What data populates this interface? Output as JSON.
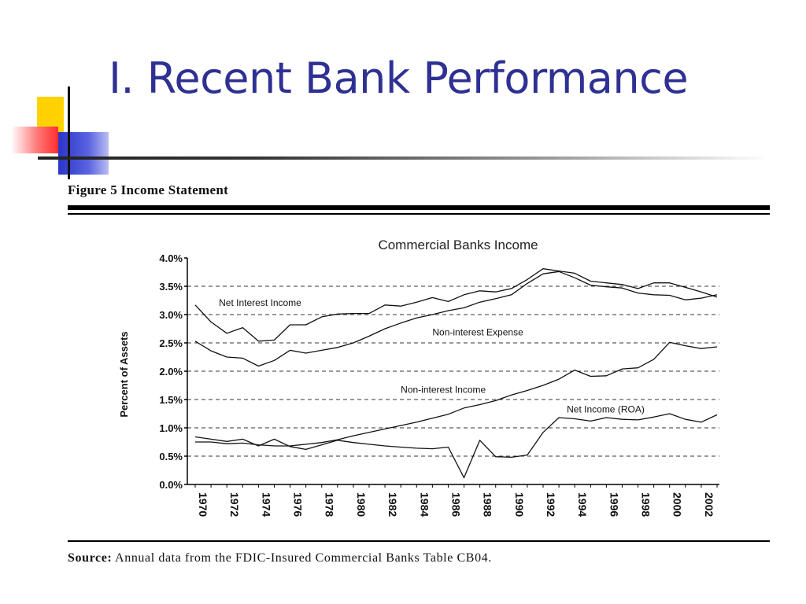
{
  "slide": {
    "title": "I. Recent Bank Performance"
  },
  "figure": {
    "caption": "Figure 5  Income Statement",
    "source_prefix": "Source:",
    "source_text": " Annual data from the FDIC-Insured Commercial Banks Table CB04."
  },
  "colors": {
    "title": "#2e3192",
    "line": "#111111",
    "deco_yellow": "#ffd200",
    "deco_red": "#ff2d2d",
    "deco_blue": "#2b35c8"
  },
  "chart_data": {
    "type": "line",
    "title": "Commercial Banks Income",
    "ylabel": "Percent of Assets",
    "xlabel": "",
    "ylim": [
      0.0,
      4.0
    ],
    "yticks": [
      "0.0%",
      "0.5%",
      "1.0%",
      "1.5%",
      "2.0%",
      "2.5%",
      "3.0%",
      "3.5%",
      "4.0%"
    ],
    "xlim": [
      1970,
      2003
    ],
    "xticks": [
      "1970",
      "1972",
      "1974",
      "1976",
      "1978",
      "1980",
      "1982",
      "1984",
      "1986",
      "1988",
      "1990",
      "1992",
      "1994",
      "1996",
      "1998",
      "2000",
      "2002"
    ],
    "grid": "horizontal dashed",
    "x": [
      1970,
      1971,
      1972,
      1973,
      1974,
      1975,
      1976,
      1977,
      1978,
      1979,
      1980,
      1981,
      1982,
      1983,
      1984,
      1985,
      1986,
      1987,
      1988,
      1989,
      1990,
      1991,
      1992,
      1993,
      1994,
      1995,
      1996,
      1997,
      1998,
      1999,
      2000,
      2001,
      2002,
      2003
    ],
    "series": [
      {
        "name": "Net Interest Income",
        "label_at": [
          1971.5,
          3.15
        ],
        "values": [
          3.17,
          2.87,
          2.67,
          2.77,
          2.53,
          2.55,
          2.82,
          2.82,
          2.96,
          3.01,
          3.02,
          3.02,
          3.17,
          3.15,
          3.22,
          3.3,
          3.23,
          3.35,
          3.42,
          3.4,
          3.46,
          3.62,
          3.81,
          3.77,
          3.73,
          3.59,
          3.56,
          3.53,
          3.46,
          3.56,
          3.56,
          3.48,
          3.4,
          3.31
        ]
      },
      {
        "name": "Non-interest Expense",
        "label_at": [
          1985.0,
          2.63
        ],
        "values": [
          2.53,
          2.36,
          2.25,
          2.23,
          2.09,
          2.19,
          2.37,
          2.32,
          2.37,
          2.42,
          2.5,
          2.62,
          2.75,
          2.85,
          2.94,
          3.0,
          3.07,
          3.12,
          3.22,
          3.28,
          3.35,
          3.55,
          3.72,
          3.76,
          3.65,
          3.52,
          3.49,
          3.47,
          3.38,
          3.35,
          3.34,
          3.26,
          3.29,
          3.35
        ]
      },
      {
        "name": "Non-interest Income",
        "label_at": [
          1983.0,
          1.62
        ],
        "values": [
          0.75,
          0.75,
          0.72,
          0.73,
          0.7,
          0.68,
          0.68,
          0.71,
          0.74,
          0.79,
          0.86,
          0.92,
          0.98,
          1.04,
          1.1,
          1.17,
          1.24,
          1.35,
          1.41,
          1.48,
          1.58,
          1.66,
          1.75,
          1.86,
          2.02,
          1.91,
          1.92,
          2.04,
          2.06,
          2.21,
          2.51,
          2.45,
          2.4,
          2.43
        ]
      },
      {
        "name": "Net Income (ROA)",
        "label_at": [
          1993.5,
          1.27
        ],
        "values": [
          0.84,
          0.8,
          0.76,
          0.8,
          0.68,
          0.8,
          0.67,
          0.62,
          0.7,
          0.78,
          0.74,
          0.71,
          0.68,
          0.66,
          0.64,
          0.63,
          0.66,
          0.12,
          0.78,
          0.49,
          0.48,
          0.52,
          0.92,
          1.18,
          1.16,
          1.12,
          1.18,
          1.15,
          1.14,
          1.19,
          1.25,
          1.15,
          1.1,
          1.23
        ]
      }
    ]
  }
}
